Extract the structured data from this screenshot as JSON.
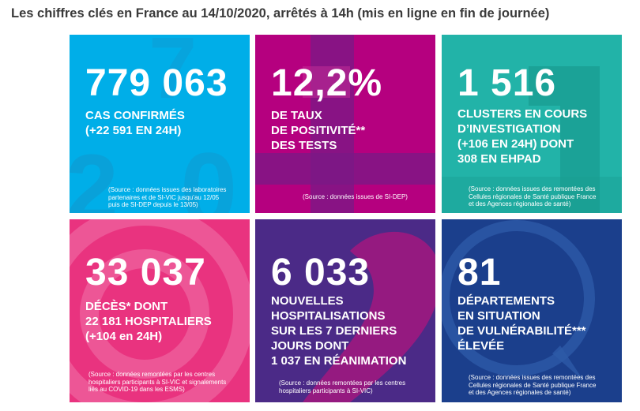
{
  "title": "Les chiffres clés en France au 14/10/2020, arrêtés à 14h (mis en ligne en fin de journée)",
  "colors": {
    "cases": "#00aee8",
    "positivity": "#b5007f",
    "clusters": "#22b3a8",
    "deaths": "#e9337f",
    "hospitalizations": "#4b2a87",
    "departments": "#1b3f8c"
  },
  "tiles": {
    "cases": {
      "value": "779 063",
      "label": "CAS CONFIRMÉS\n(+22 591 EN 24H)",
      "source": "(Source : données issues des laboratoires\npartenaires et de SI-VIC jusqu’au 12/05\npuis de SI-DEP depuis le 13/05)"
    },
    "positivity": {
      "value": "12,2%",
      "label": "DE TAUX\nDE POSITIVITÉ**\nDES TESTS",
      "source": "(Source : données issues de SI-DEP)"
    },
    "clusters": {
      "value": "1 516",
      "label": "CLUSTERS EN COURS\nD’INVESTIGATION\n(+106 EN 24H) DONT\n308 EN EHPAD",
      "source": "(Source : données issues des remontées des\nCellules régionales de Santé publique France\net des Agences régionales de santé)"
    },
    "deaths": {
      "value": "33 037",
      "label": "DÉCÈS* DONT\n22 181 HOSPITALIERS\n(+104 en 24H)",
      "source": "(Source : données remontées par les centres\nhospitaliers participants à SI-VIC et signalements\nliés au COVID-19 dans les ESMS)"
    },
    "hospitalizations": {
      "value": "6 033",
      "label": "NOUVELLES\nHOSPITALISATIONS\nSUR LES 7 DERNIERS\nJOURS DONT\n1 037 EN RÉANIMATION",
      "source": "(Source : données remontées par les centres\nhospitaliers participants à SI-VIC)"
    },
    "departments": {
      "value": "81",
      "label": "DÉPARTEMENTS\nEN SITUATION\nDE VULNÉRABILITÉ***\nÉLEVÉE",
      "source": "(Source : données issues des remontées des\nCellules régionales de Santé publique France\net des Agences régionales de santé)"
    }
  }
}
